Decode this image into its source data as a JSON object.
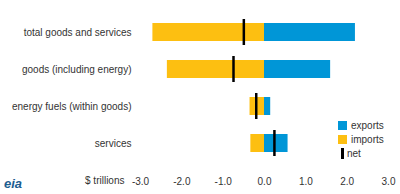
{
  "chart_data": {
    "type": "bar",
    "orientation": "horizontal",
    "categories": [
      "total goods and services",
      "goods (including energy)",
      "energy fuels (within goods)",
      "services"
    ],
    "series": [
      {
        "name": "exports",
        "color": "#0096d7",
        "values": [
          2.2,
          1.6,
          0.15,
          0.57
        ]
      },
      {
        "name": "imports",
        "color": "#fdbf11",
        "values": [
          -2.7,
          -2.35,
          -0.35,
          -0.33
        ]
      },
      {
        "name": "net",
        "type": "tick",
        "color": "#000000",
        "values": [
          -0.5,
          -0.75,
          -0.2,
          0.24
        ]
      }
    ],
    "xlabel": "$ trillions",
    "xlim": [
      -3,
      3
    ],
    "xticks": [
      {
        "value": -3,
        "label": "-3.0"
      },
      {
        "value": -2,
        "label": "-2.0"
      },
      {
        "value": -1,
        "label": "-1.0"
      },
      {
        "value": 0,
        "label": "0.0"
      },
      {
        "value": 1,
        "label": "1.0"
      },
      {
        "value": 2,
        "label": "2.0"
      },
      {
        "value": 3,
        "label": "3.0"
      }
    ],
    "grid": false,
    "legend": "bottom-right",
    "annotations": [
      "eia"
    ]
  }
}
